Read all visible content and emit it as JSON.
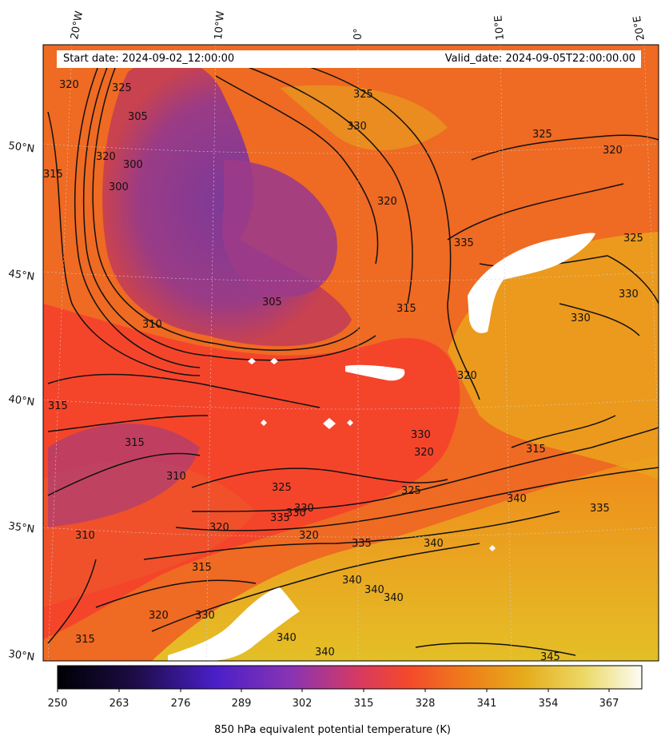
{
  "header": {
    "start_label": "Start date: 2024-09-02_12:00:00",
    "valid_label": "Valid_date: 2024-09-05T22:00:00.00"
  },
  "map": {
    "field": "850 hPa equivalent potential temperature (K)",
    "lon_labels": [
      "20°W",
      "10°W",
      "0°",
      "10°E",
      "20°E"
    ],
    "lat_labels": [
      "50°N",
      "45°N",
      "40°N",
      "35°N",
      "30°N"
    ],
    "contour_labels": [
      "320",
      "325",
      "305",
      "300",
      "320",
      "300",
      "315",
      "325",
      "330",
      "325",
      "320",
      "320",
      "335",
      "325",
      "330",
      "315",
      "310",
      "305",
      "330",
      "315",
      "320",
      "315",
      "310",
      "330",
      "315",
      "325",
      "325",
      "320",
      "330",
      "340",
      "335",
      "310",
      "320",
      "315",
      "320",
      "335",
      "340",
      "330",
      "340",
      "340",
      "340",
      "340",
      "335",
      "320",
      "315",
      "330",
      "345",
      "340"
    ],
    "colors": {
      "cold": "#7a3a9a",
      "mid": "#f4492c",
      "warm": "#ef7d1a",
      "hot": "#e6b81e"
    }
  },
  "colorbar": {
    "ticks": [
      "250",
      "263",
      "276",
      "289",
      "302",
      "315",
      "328",
      "341",
      "354",
      "367"
    ],
    "title": "850 hPa equivalent potential temperature (K)",
    "range": [
      250,
      372
    ]
  }
}
